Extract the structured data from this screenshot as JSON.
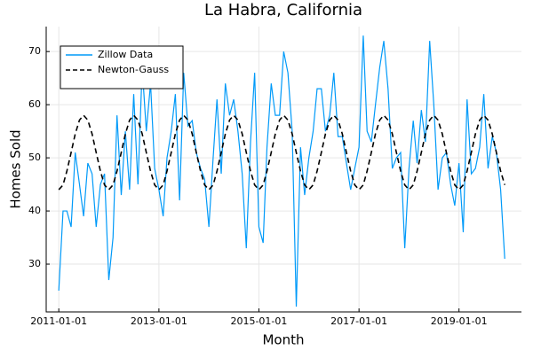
{
  "chart_data": {
    "type": "line",
    "title": "La Habra, California",
    "x_label": "Month",
    "y_label": "Homes Sold",
    "x": [
      "2011-01-01",
      "2011-02-01",
      "2011-03-01",
      "2011-04-01",
      "2011-05-01",
      "2011-06-01",
      "2011-07-01",
      "2011-08-01",
      "2011-09-01",
      "2011-10-01",
      "2011-11-01",
      "2011-12-01",
      "2012-01-01",
      "2012-02-01",
      "2012-03-01",
      "2012-04-01",
      "2012-05-01",
      "2012-06-01",
      "2012-07-01",
      "2012-08-01",
      "2012-09-01",
      "2012-10-01",
      "2012-11-01",
      "2012-12-01",
      "2013-01-01",
      "2013-02-01",
      "2013-03-01",
      "2013-04-01",
      "2013-05-01",
      "2013-06-01",
      "2013-07-01",
      "2013-08-01",
      "2013-09-01",
      "2013-10-01",
      "2013-11-01",
      "2013-12-01",
      "2014-01-01",
      "2014-02-01",
      "2014-03-01",
      "2014-04-01",
      "2014-05-01",
      "2014-06-01",
      "2014-07-01",
      "2014-08-01",
      "2014-09-01",
      "2014-10-01",
      "2014-11-01",
      "2014-12-01",
      "2015-01-01",
      "2015-02-01",
      "2015-03-01",
      "2015-04-01",
      "2015-05-01",
      "2015-06-01",
      "2015-07-01",
      "2015-08-01",
      "2015-09-01",
      "2015-10-01",
      "2015-11-01",
      "2015-12-01",
      "2016-01-01",
      "2016-02-01",
      "2016-03-01",
      "2016-04-01",
      "2016-05-01",
      "2016-06-01",
      "2016-07-01",
      "2016-08-01",
      "2016-09-01",
      "2016-10-01",
      "2016-11-01",
      "2016-12-01",
      "2017-01-01",
      "2017-02-01",
      "2017-03-01",
      "2017-04-01",
      "2017-05-01",
      "2017-06-01",
      "2017-07-01",
      "2017-08-01",
      "2017-09-01",
      "2017-10-01",
      "2017-11-01",
      "2017-12-01",
      "2018-01-01",
      "2018-02-01",
      "2018-03-01",
      "2018-04-01",
      "2018-05-01",
      "2018-06-01",
      "2018-07-01",
      "2018-08-01",
      "2018-09-01",
      "2018-10-01",
      "2018-11-01",
      "2018-12-01",
      "2019-01-01",
      "2019-02-01",
      "2019-03-01",
      "2019-04-01",
      "2019-05-01",
      "2019-06-01",
      "2019-07-01",
      "2019-08-01",
      "2019-09-01",
      "2019-10-01",
      "2019-11-01",
      "2019-12-01"
    ],
    "series": [
      {
        "name": "Zillow Data",
        "color": "#009af9",
        "linestyle": "solid",
        "values": [
          25,
          40,
          40,
          37,
          51,
          45,
          39,
          49,
          47,
          37,
          45,
          47,
          27,
          35,
          58,
          43,
          55,
          44,
          62,
          45,
          67,
          55,
          64,
          48,
          44,
          39,
          50,
          55,
          62,
          42,
          66,
          56,
          57,
          51,
          48,
          46,
          37,
          50,
          61,
          47,
          64,
          58,
          61,
          55,
          47,
          33,
          53,
          66,
          37,
          34,
          52,
          64,
          58,
          58,
          70,
          66,
          55,
          22,
          52,
          43,
          50,
          55,
          63,
          63,
          55,
          58,
          66,
          54,
          54,
          49,
          44,
          48,
          52,
          73,
          55,
          53,
          60,
          67,
          72,
          63,
          48,
          50,
          51,
          33,
          48,
          57,
          49,
          59,
          53,
          72,
          60,
          44,
          50,
          51,
          45,
          41,
          49,
          36,
          61,
          47,
          48,
          52,
          62,
          48,
          54,
          51,
          44,
          31
        ]
      },
      {
        "name": "Newton-Gauss",
        "color": "#000000",
        "linestyle": "dashed",
        "values": [
          44,
          44.9,
          47.5,
          51,
          54.5,
          57.1,
          58,
          57.1,
          54.5,
          51,
          47.5,
          44.9,
          44,
          44.9,
          47.5,
          51,
          54.5,
          57.1,
          58,
          57.1,
          54.5,
          51,
          47.5,
          44.9,
          44,
          44.9,
          47.5,
          51,
          54.5,
          57.1,
          58,
          57.1,
          54.5,
          51,
          47.5,
          44.9,
          44,
          44.9,
          47.5,
          51,
          54.5,
          57.1,
          58,
          57.1,
          54.5,
          51,
          47.5,
          44.9,
          44,
          44.9,
          47.5,
          51,
          54.5,
          57.1,
          58,
          57.1,
          54.5,
          51,
          47.5,
          44.9,
          44,
          44.9,
          47.5,
          51,
          54.5,
          57.1,
          58,
          57.1,
          54.5,
          51,
          47.5,
          44.9,
          44,
          44.9,
          47.5,
          51,
          54.5,
          57.1,
          58,
          57.1,
          54.5,
          51,
          47.5,
          44.9,
          44,
          44.9,
          47.5,
          51,
          54.5,
          57.1,
          58,
          57.1,
          54.5,
          51,
          47.5,
          44.9,
          44,
          44.9,
          47.5,
          51,
          54.5,
          57.1,
          58,
          57.1,
          54.5,
          51,
          47.5,
          44.9
        ]
      }
    ],
    "xlim": [
      "2010-10-01",
      "2020-04-01"
    ],
    "xticks": [
      "2011-01-01",
      "2013-01-01",
      "2015-01-01",
      "2017-01-01",
      "2019-01-01"
    ],
    "ylim": [
      21,
      74.7
    ],
    "yticks": [
      30,
      40,
      50,
      60,
      70
    ],
    "grid": true,
    "legend": "top-left"
  }
}
